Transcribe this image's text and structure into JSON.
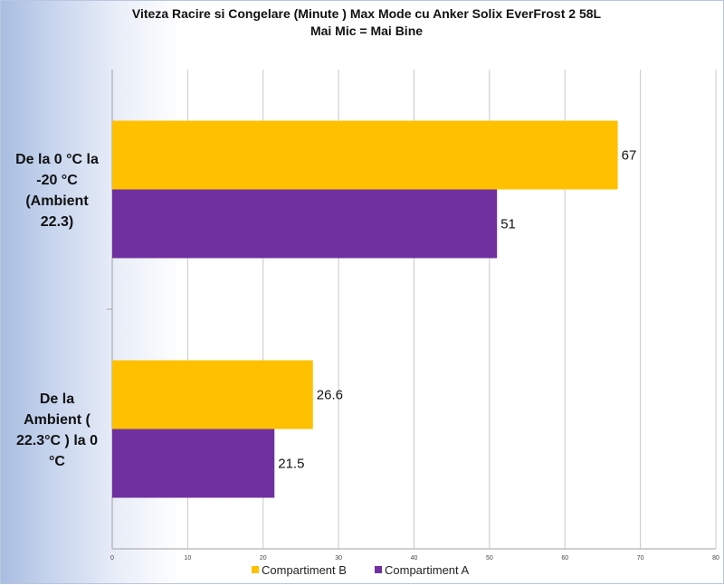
{
  "chart_data": {
    "type": "bar",
    "orientation": "horizontal",
    "title": "Viteza Racire si Congelare (Minute )  Max Mode cu Anker Solix EverFrost 2 58L",
    "subtitle": "Mai Mic = Mai Bine",
    "categories": [
      [
        "De la 0 °C la",
        "-20 °C",
        "(Ambient",
        "22.3)"
      ],
      [
        "De la",
        "Ambient (",
        "22.3°C ) la 0",
        "°C"
      ]
    ],
    "series": [
      {
        "name": "Compartiment B",
        "color": "#ffc000",
        "values": [
          67,
          26.6
        ],
        "labels": [
          "67",
          "26.6"
        ]
      },
      {
        "name": "Compartiment A",
        "color": "#7030a0",
        "values": [
          51,
          21.5
        ],
        "labels": [
          "51",
          "21.5"
        ]
      }
    ],
    "xlim": [
      0,
      80
    ],
    "xticks": [
      "0",
      "10",
      "20",
      "30",
      "40",
      "50",
      "60",
      "70",
      "80"
    ],
    "grid": true,
    "legend_position": "bottom"
  }
}
